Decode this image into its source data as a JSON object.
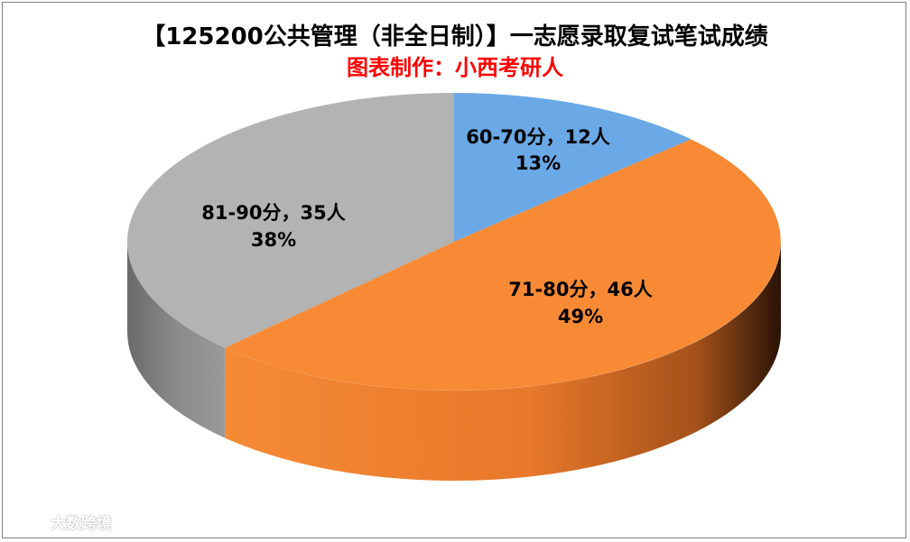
{
  "chart_data": {
    "type": "pie",
    "title": "【125200公共管理（非全日制）】一志愿录取复试笔试成绩",
    "subtitle": "图表制作：小西考研人",
    "slices": [
      {
        "range": "60-70分",
        "count": 12,
        "count_label": "12人",
        "percent_label": "13%",
        "percent": 13,
        "color": "#6aa8e6"
      },
      {
        "range": "71-80分",
        "count": 46,
        "count_label": "46人",
        "percent_label": "49%",
        "percent": 49,
        "color": "#f88a35"
      },
      {
        "range": "81-90分",
        "count": 35,
        "count_label": "35人",
        "percent_label": "38%",
        "percent": 38,
        "color": "#b3b3b3"
      }
    ]
  },
  "watermark": "大数跨境"
}
